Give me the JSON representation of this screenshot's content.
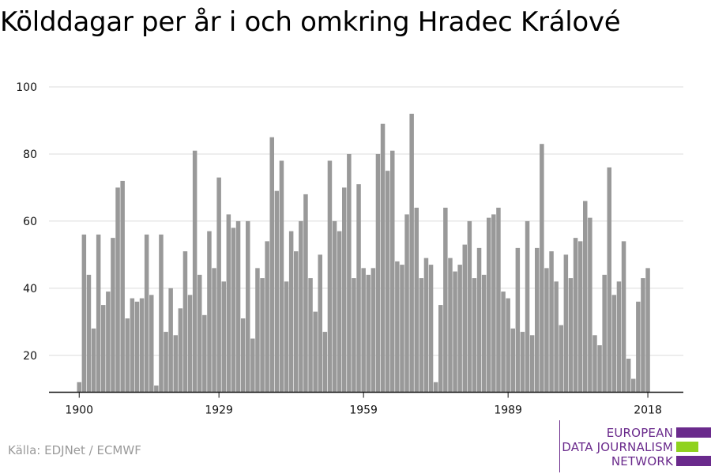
{
  "title": "Kölddagar per år i och omkring Hradec Králové",
  "source": "Källa: EDJNet / ECMWF",
  "logo": {
    "lines": [
      "EUROPEAN",
      "DATA JOURNALISM",
      "NETWORK"
    ],
    "colors": {
      "purple": "#6a2a8c",
      "green": "#8fd21f"
    }
  },
  "chart_data": {
    "type": "bar",
    "color": "#999999",
    "grid": true,
    "xticks": [
      1900,
      1929,
      1959,
      1989,
      2018
    ],
    "yticks": [
      20,
      40,
      60,
      80,
      100
    ],
    "ylim": [
      9,
      100
    ],
    "x_start": 1900,
    "values": [
      12,
      56,
      44,
      28,
      56,
      35,
      39,
      55,
      70,
      72,
      31,
      37,
      36,
      37,
      56,
      38,
      11,
      56,
      27,
      40,
      26,
      34,
      51,
      38,
      81,
      44,
      32,
      57,
      46,
      73,
      42,
      62,
      58,
      60,
      31,
      60,
      25,
      46,
      43,
      54,
      85,
      69,
      78,
      42,
      57,
      51,
      60,
      68,
      43,
      33,
      50,
      27,
      78,
      60,
      57,
      70,
      80,
      43,
      71,
      46,
      44,
      46,
      80,
      89,
      75,
      81,
      48,
      47,
      62,
      92,
      64,
      43,
      49,
      47,
      12,
      35,
      64,
      49,
      45,
      47,
      53,
      60,
      43,
      52,
      44,
      61,
      62,
      64,
      39,
      37,
      28,
      52,
      27,
      60,
      26,
      52,
      83,
      46,
      51,
      42,
      29,
      50,
      43,
      55,
      54,
      66,
      61,
      26,
      23,
      44,
      76,
      38,
      42,
      54,
      19,
      13,
      36,
      43,
      46
    ]
  }
}
